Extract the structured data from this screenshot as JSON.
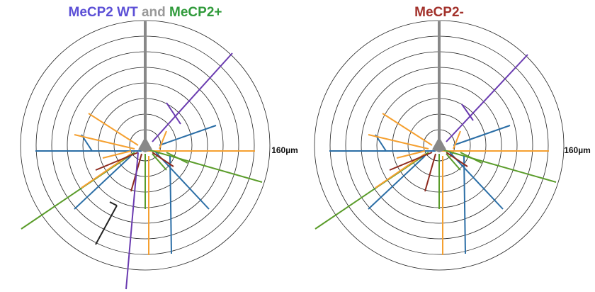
{
  "panels": [
    {
      "title": {
        "parts": [
          "MeCP2 WT",
          "and",
          "MeCP2+"
        ]
      },
      "scale_label": "160µm"
    },
    {
      "title": {
        "parts": [
          "MeCP2-"
        ]
      },
      "scale_label": "160µm"
    }
  ]
}
